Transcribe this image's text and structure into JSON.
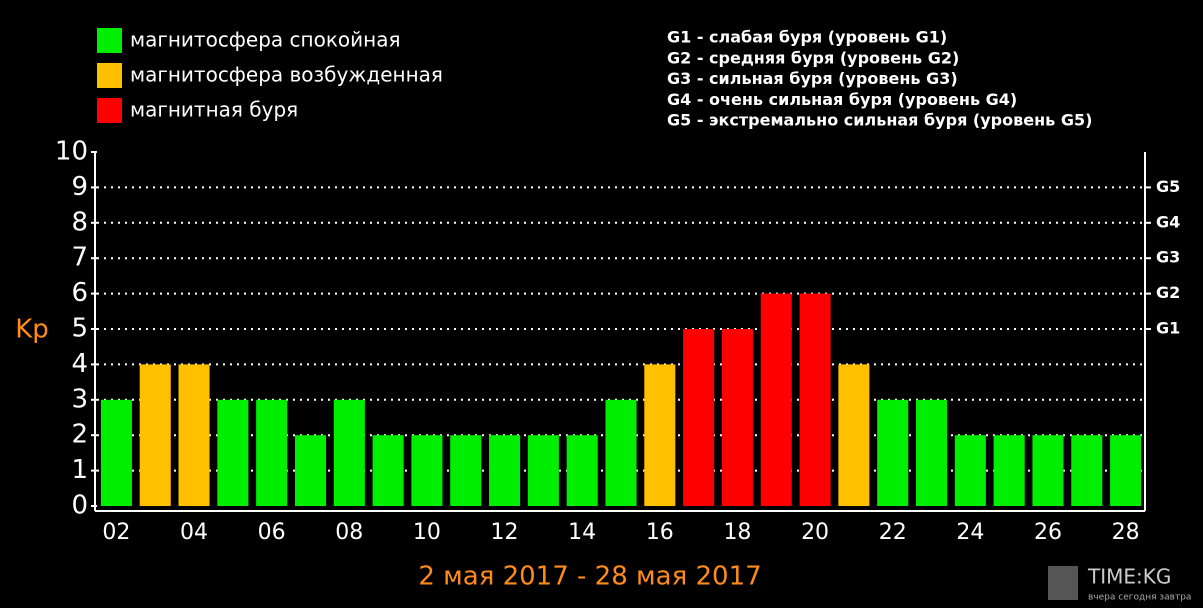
{
  "chart_data": {
    "type": "bar",
    "title": "2 мая 2017 - 28 мая 2017",
    "y_label": "Kp",
    "categories": [
      "02",
      null,
      "04",
      null,
      "06",
      null,
      "08",
      null,
      "10",
      null,
      "12",
      null,
      "14",
      null,
      "16",
      null,
      "18",
      null,
      "20",
      null,
      "22",
      null,
      "24",
      null,
      "26",
      null,
      "28"
    ],
    "values": [
      3,
      4,
      4,
      3,
      3,
      2,
      3,
      2,
      2,
      2,
      2,
      2,
      2,
      3,
      4,
      5,
      5,
      6,
      6,
      4,
      3,
      3,
      2,
      2,
      2,
      2,
      2
    ],
    "colors": [
      "#00ee00",
      "#ffc000",
      "#ffc000",
      "#00ee00",
      "#00ee00",
      "#00ee00",
      "#00ee00",
      "#00ee00",
      "#00ee00",
      "#00ee00",
      "#00ee00",
      "#00ee00",
      "#00ee00",
      "#00ee00",
      "#ffc000",
      "#ff0000",
      "#ff0000",
      "#ff0000",
      "#ff0000",
      "#ffc000",
      "#00ee00",
      "#00ee00",
      "#00ee00",
      "#00ee00",
      "#00ee00",
      "#00ee00",
      "#00ee00"
    ],
    "legend": [
      {
        "name": "магнитосфера спокойная",
        "color": "#00ee00"
      },
      {
        "name": "магнитосфера возбужденная",
        "color": "#ffc000"
      },
      {
        "name": "магнитная буря",
        "color": "#ff0000"
      }
    ],
    "notes": [
      "G1 - слабая буря (уровень G1)",
      "G2 - средняя буря (уровень G2)",
      "G3 - сильная буря (уровень G3)",
      "G4 - очень сильная буря (уровень G4)",
      "G5 - экстремально сильная буря (уровень G5)"
    ],
    "ylim": [
      0,
      10
    ],
    "yticks": [
      0,
      1,
      2,
      3,
      4,
      5,
      6,
      7,
      8,
      9,
      10
    ],
    "y2lim": [
      0,
      10
    ],
    "y2ticks": [
      {
        "value": 5,
        "label": "G1"
      },
      {
        "value": 6,
        "label": "G2"
      },
      {
        "value": 7,
        "label": "G3"
      },
      {
        "value": 8,
        "label": "G4"
      },
      {
        "value": 9,
        "label": "G5"
      }
    ],
    "grid": true
  },
  "watermark": {
    "title": "TIME:KG",
    "subtitle": "вчера сегодня завтра"
  }
}
